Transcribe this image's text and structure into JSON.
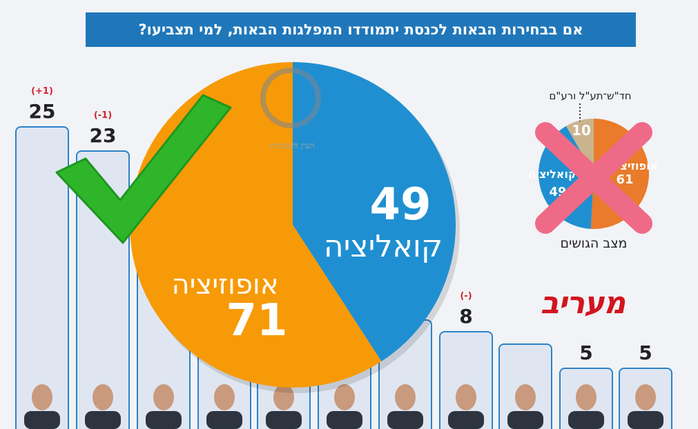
{
  "title": "אם בבחירות הבאות לכנסת יתמודדו המפלגות הבאות, למי תצביעו?",
  "chart_data": [
    {
      "type": "bar",
      "values": [
        25,
        23,
        null,
        null,
        null,
        null,
        null,
        8,
        null,
        5,
        5
      ],
      "changes": [
        "(+1)",
        "(-1)",
        null,
        null,
        null,
        null,
        null,
        "(-)",
        null,
        null,
        null
      ]
    },
    {
      "type": "pie",
      "slices": [
        {
          "label": "קואליציה",
          "value": 49,
          "color": "#1f8fd1"
        },
        {
          "label": "אופוזיציה",
          "value": 71,
          "color": "#f79a07"
        }
      ]
    },
    {
      "type": "pie",
      "caption": "מצב הגושים",
      "annotation": "חד\"ש־תע\"ל ורע\"ם",
      "slices": [
        {
          "label": "אופוזיציה",
          "value": 61,
          "color": "#e97b2a"
        },
        {
          "label": "קואליציה",
          "value": 49,
          "color": "#1f8fd1"
        },
        {
          "label": "חד\"ש־תע\"ל ורע\"ם",
          "value": 10,
          "color": "#c9b48d"
        }
      ]
    }
  ],
  "brand": "מעריב",
  "watermark": "העין השביעית",
  "colors": {
    "accent": "#1f77ba",
    "check": "#2fb52a",
    "cross": "#ef6a87"
  },
  "icons": [
    "check-mark-icon",
    "cross-mark-icon"
  ]
}
